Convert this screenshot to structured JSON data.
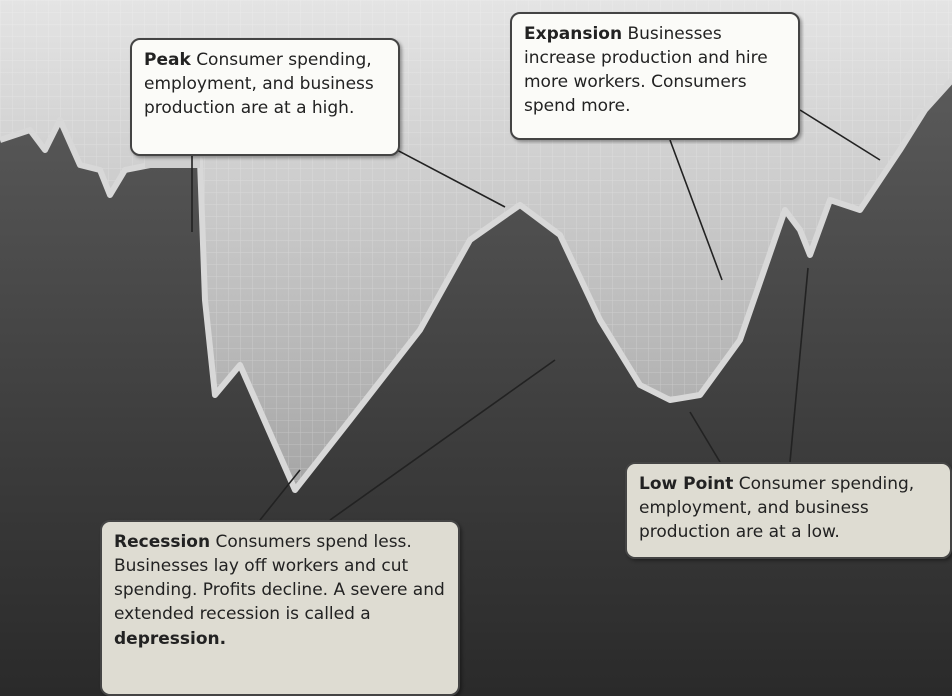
{
  "callouts": [
    {
      "term": "Peak",
      "text": "Consumer spending, employment, and business production are at a high."
    },
    {
      "term": "Expansion",
      "text": "Businesses increase production and hire more workers. Consumers spend more."
    },
    {
      "term": "Low Point",
      "text": "Consumer spending, employment, and business production are at a low."
    },
    {
      "term": "Recession",
      "text": "Consumers spend less. Businesses lay off workers and cut spending. Profits decline. A severe and extended recession is called a",
      "closing_term": "depression."
    }
  ]
}
